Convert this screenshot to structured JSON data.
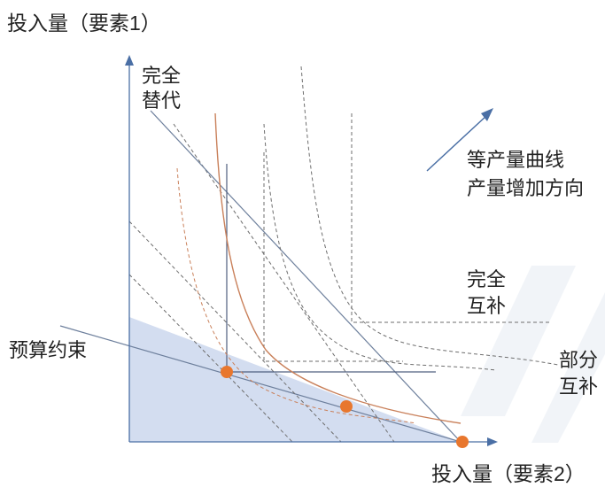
{
  "labels": {
    "y_axis": "投入量（要素1）",
    "x_axis": "投入量（要素2）",
    "perfect_substitute_line1": "完全",
    "perfect_substitute_line2": "替代",
    "isoquant_direction_line1": "等产量曲线",
    "isoquant_direction_line2": "产量增加方向",
    "perfect_complement_line1": "完全",
    "perfect_complement_line2": "互补",
    "partial_complement_line1": "部分",
    "partial_complement_line2": "互补",
    "budget_constraint": "预算约束"
  },
  "colors": {
    "axis": "#4a6fa5",
    "budget_fill": "#d3ddf0",
    "budget_line": "#6d7f9c",
    "curve": "#c9805a",
    "point": "#e8772e",
    "dash": "#6e6e6e",
    "arrow": "#4a6fa5"
  },
  "watermark": "Logo"
}
